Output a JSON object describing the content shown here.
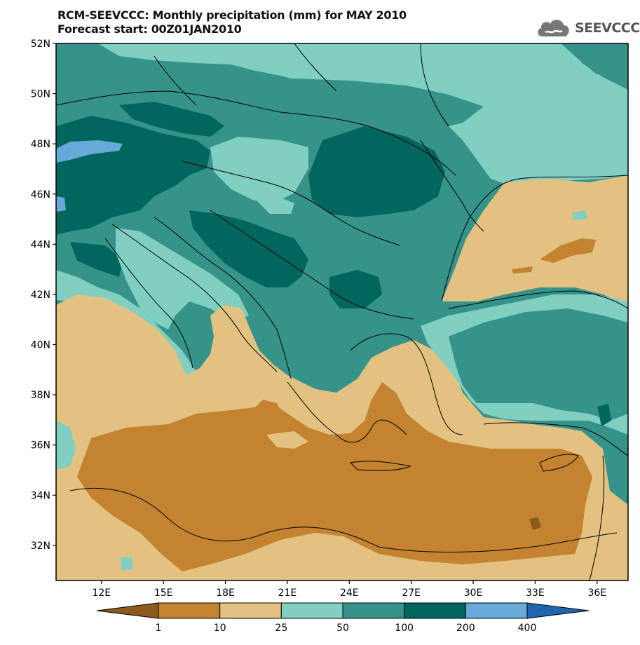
{
  "title": {
    "line1": "RCM-SEEVCCC: Monthly precipitation (mm) for MAY 2010",
    "line2": "Forecast start: 00Z01JAN2010"
  },
  "logo": {
    "text": "SEEVCCC",
    "icon": "cloud-icon"
  },
  "map": {
    "lon_range": [
      9.8,
      37.5
    ],
    "lat_range": [
      30.6,
      52
    ],
    "lat_ticks": [
      {
        "label": "52N",
        "value": 52
      },
      {
        "label": "50N",
        "value": 50
      },
      {
        "label": "48N",
        "value": 48
      },
      {
        "label": "46N",
        "value": 46
      },
      {
        "label": "44N",
        "value": 44
      },
      {
        "label": "42N",
        "value": 42
      },
      {
        "label": "40N",
        "value": 40
      },
      {
        "label": "38N",
        "value": 38
      },
      {
        "label": "36N",
        "value": 36
      },
      {
        "label": "34N",
        "value": 34
      },
      {
        "label": "32N",
        "value": 32
      }
    ],
    "lon_ticks": [
      {
        "label": "12E",
        "value": 12
      },
      {
        "label": "15E",
        "value": 15
      },
      {
        "label": "18E",
        "value": 18
      },
      {
        "label": "21E",
        "value": 21
      },
      {
        "label": "24E",
        "value": 24
      },
      {
        "label": "27E",
        "value": 27
      },
      {
        "label": "30E",
        "value": 30
      },
      {
        "label": "33E",
        "value": 33
      },
      {
        "label": "36E",
        "value": 36
      }
    ]
  },
  "legend": {
    "boundaries": [
      "1",
      "10",
      "25",
      "50",
      "100",
      "200",
      "400"
    ],
    "colors": [
      "#8c5a1e",
      "#c38331",
      "#e2c181",
      "#80cfc1",
      "#36938a",
      "#01665e",
      "#67a9d8",
      "#2166ac"
    ]
  }
}
